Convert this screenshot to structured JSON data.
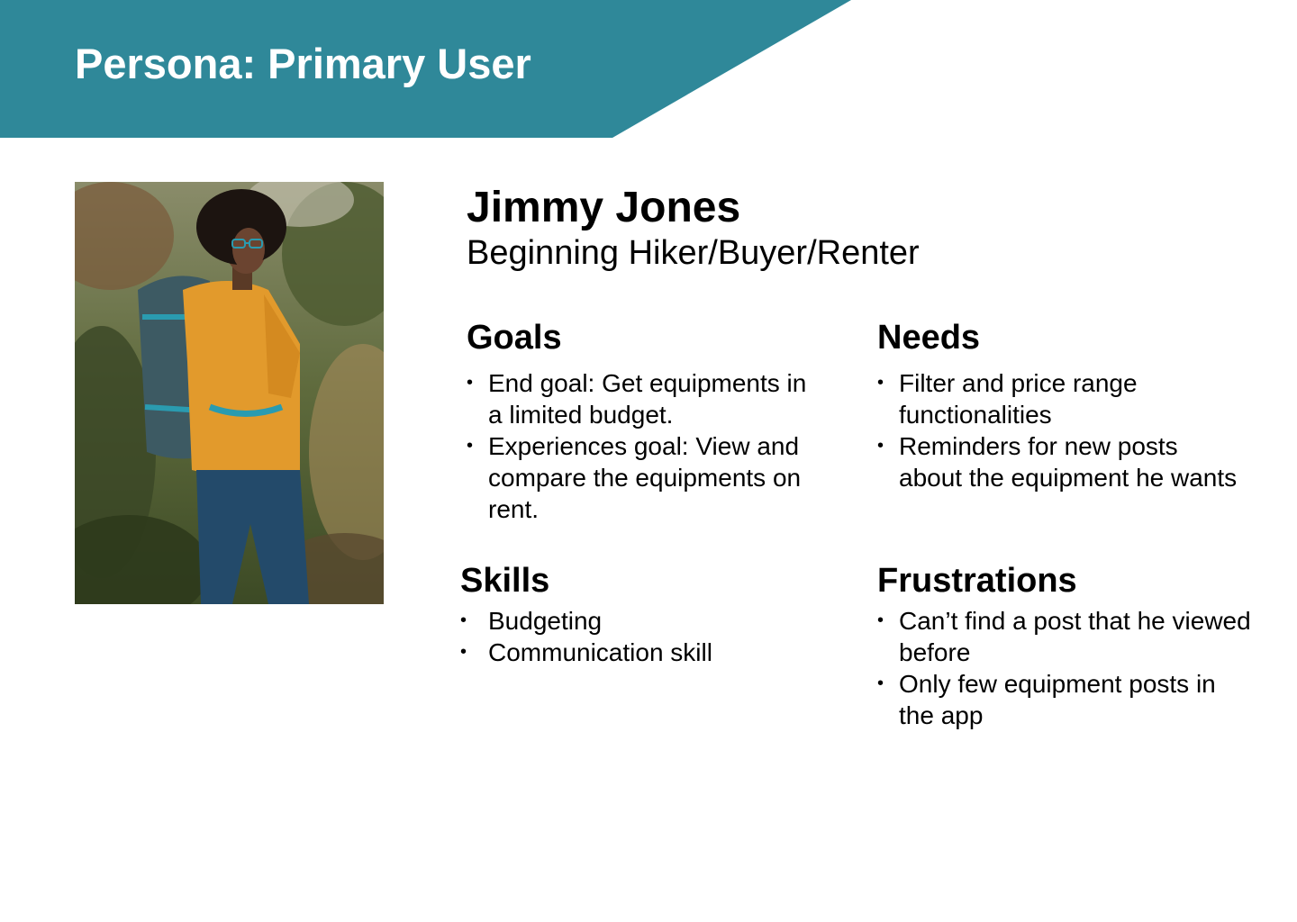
{
  "header": {
    "title": "Persona: Primary User",
    "color": "#2f8899"
  },
  "persona": {
    "name": "Jimmy Jones",
    "role": "Beginning Hiker/Buyer/Renter",
    "photo_icon": "hiker-photo"
  },
  "sections": {
    "goals": {
      "title": "Goals",
      "items": [
        "End goal: Get equipments in a limited budget.",
        "Experiences goal: View and compare the equipments on rent."
      ]
    },
    "needs": {
      "title": "Needs",
      "items": [
        "Filter and price range functionalities",
        "Reminders for new posts about the equipment he wants"
      ]
    },
    "skills": {
      "title": "Skills",
      "items": [
        "Budgeting",
        "Communication skill"
      ]
    },
    "frustrations": {
      "title": "Frustrations",
      "items": [
        "Can’t find a post that he viewed before",
        "Only few equipment posts in the app"
      ]
    }
  }
}
